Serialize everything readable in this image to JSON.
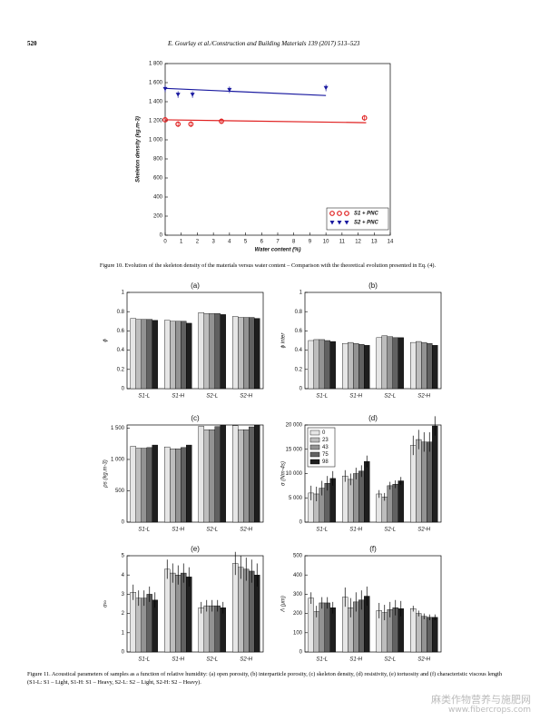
{
  "header": {
    "page": "520",
    "journal": "E. Gourlay et al./Construction and Building Materials 139 (2017) 513–523"
  },
  "captions": {
    "figure10": "Figure 10. Evolution of the skeleton density of the materials versus water content – Comparison with the theoretical evolution presented in Eq. (4).",
    "figure11": "Figure 11. Acoustical parameters of samples as a function of relative humidity: (a) open porosity, (b) interparticle porosity, (c) skeleton density, (d) resistivity, (e) tortuosity and (f) characteristic viscous length (S1-L: S1 – Light, S1-H: S1 – Heavy, S2-L: S2 – Light, S2-H: S2 – Heavy)."
  },
  "watermark": {
    "text": "麻类作物营养与施肥网",
    "url": "www.fibercrops.com"
  },
  "chart_data": [
    {
      "type": "scatter",
      "x_label": "Water content (%)",
      "y_label": "Skeleton density (kg.m-3)",
      "xlim": [
        0,
        14
      ],
      "xticks": [
        0,
        1,
        2,
        3,
        4,
        5,
        6,
        7,
        8,
        9,
        10,
        11,
        12,
        13,
        14
      ],
      "ylim": [
        0,
        1800
      ],
      "yticks": [
        0,
        200,
        400,
        600,
        800,
        {
          "value": 1000,
          "label": "1 000"
        },
        {
          "value": 1200,
          "label": "1 200"
        },
        {
          "value": 1400,
          "label": "1 400"
        },
        {
          "value": 1600,
          "label": "1 600"
        },
        {
          "value": 1800,
          "label": "1 800"
        }
      ],
      "legend": "lower right",
      "series": [
        {
          "name": "S1 + PNC",
          "color": "#e02020",
          "marker": "o",
          "x": [
            0,
            0.8,
            1.6,
            3.5,
            12.4
          ],
          "values": [
            1210,
            1165,
            1165,
            1195,
            1230
          ],
          "errors": [
            25,
            30,
            30,
            30,
            30
          ]
        },
        {
          "name": "S2 + PNC",
          "color": "#1a1aa0",
          "marker": "v",
          "x": [
            0,
            0.8,
            1.7,
            4,
            10
          ],
          "values": [
            1535,
            1475,
            1475,
            1525,
            1545
          ],
          "errors": [
            35,
            35,
            35,
            35,
            35
          ]
        }
      ],
      "lines": [
        {
          "color": "#e02020",
          "x": [
            0,
            12.5
          ],
          "values": [
            1210,
            1180
          ]
        },
        {
          "color": "#1a1aa0",
          "x": [
            0,
            10
          ],
          "values": [
            1540,
            1465
          ]
        }
      ]
    },
    {
      "type": "bar",
      "title": "(a)",
      "y_label": "ϕ",
      "categories": [
        "S1-L",
        "S1-H",
        "S2-L",
        "S2-H"
      ],
      "ylim": [
        0,
        1
      ],
      "yticks": [
        0,
        0.2,
        0.4,
        0.6,
        0.8,
        1
      ],
      "series": [
        {
          "color": "#e6e6e6",
          "values": [
            0.73,
            0.71,
            0.79,
            0.75
          ]
        },
        {
          "color": "#bdbdbd",
          "values": [
            0.72,
            0.7,
            0.78,
            0.74
          ]
        },
        {
          "color": "#939393",
          "values": [
            0.72,
            0.7,
            0.78,
            0.74
          ]
        },
        {
          "color": "#616161",
          "values": [
            0.72,
            0.7,
            0.78,
            0.74
          ]
        },
        {
          "color": "#1e1e1e",
          "values": [
            0.71,
            0.68,
            0.77,
            0.73
          ]
        }
      ]
    },
    {
      "type": "bar",
      "title": "(b)",
      "y_label": "ϕ inter",
      "categories": [
        "S1-L",
        "S1-H",
        "S2-L",
        "S2-H"
      ],
      "ylim": [
        0,
        1
      ],
      "yticks": [
        0,
        0.2,
        0.4,
        0.6,
        0.8,
        1
      ],
      "series": [
        {
          "color": "#e6e6e6",
          "values": [
            0.5,
            0.47,
            0.53,
            0.48
          ]
        },
        {
          "color": "#bdbdbd",
          "values": [
            0.51,
            0.48,
            0.55,
            0.49
          ]
        },
        {
          "color": "#939393",
          "values": [
            0.51,
            0.47,
            0.54,
            0.48
          ]
        },
        {
          "color": "#616161",
          "values": [
            0.5,
            0.46,
            0.53,
            0.47
          ]
        },
        {
          "color": "#1e1e1e",
          "values": [
            0.49,
            0.45,
            0.53,
            0.45
          ]
        }
      ]
    },
    {
      "type": "bar",
      "title": "(c)",
      "y_label": "ρs (kg.m-3)",
      "categories": [
        "S1-L",
        "S1-H",
        "S2-L",
        "S2-H"
      ],
      "ylim": [
        0,
        1550
      ],
      "yticks": [
        0,
        500,
        {
          "value": 1000,
          "label": "1 000"
        },
        {
          "value": 1500,
          "label": "1 500"
        }
      ],
      "series": [
        {
          "color": "#e6e6e6",
          "values": [
            1210,
            1200,
            1530,
            1540
          ]
        },
        {
          "color": "#bdbdbd",
          "values": [
            1180,
            1170,
            1475,
            1475
          ]
        },
        {
          "color": "#939393",
          "values": [
            1180,
            1170,
            1475,
            1475
          ]
        },
        {
          "color": "#616161",
          "values": [
            1190,
            1190,
            1525,
            1520
          ]
        },
        {
          "color": "#1e1e1e",
          "values": [
            1230,
            1230,
            1545,
            1545
          ]
        }
      ]
    },
    {
      "type": "bar",
      "title": "(d)",
      "y_label": "σ (Nm-4s)",
      "categories": [
        "S1-L",
        "S1-H",
        "S2-L",
        "S2-H"
      ],
      "ylim": [
        0,
        20000
      ],
      "yticks": [
        0,
        {
          "value": 5000,
          "label": "5 000"
        },
        {
          "value": 10000,
          "label": "10 000"
        },
        {
          "value": 15000,
          "label": "15 000"
        },
        {
          "value": 20000,
          "label": "20 000"
        }
      ],
      "legend": "upper left",
      "series": [
        {
          "name": "0",
          "color": "#e6e6e6",
          "values": [
            6000,
            9500,
            5800,
            15800
          ],
          "errors": [
            1500,
            1200,
            800,
            2000
          ]
        },
        {
          "name": "23",
          "color": "#bdbdbd",
          "values": [
            5800,
            8800,
            5200,
            17000
          ],
          "errors": [
            1500,
            1200,
            800,
            2000
          ]
        },
        {
          "name": "43",
          "color": "#939393",
          "values": [
            7000,
            10000,
            7500,
            16500
          ],
          "errors": [
            1500,
            1200,
            800,
            2000
          ]
        },
        {
          "name": "75",
          "color": "#616161",
          "values": [
            8000,
            10500,
            7800,
            16500
          ],
          "errors": [
            1500,
            1200,
            800,
            2000
          ]
        },
        {
          "name": "98",
          "color": "#1e1e1e",
          "values": [
            9000,
            12500,
            8500,
            19800
          ],
          "errors": [
            1500,
            1200,
            800,
            2000
          ]
        }
      ]
    },
    {
      "type": "bar",
      "title": "(e)",
      "y_label": "α∞",
      "categories": [
        "S1-L",
        "S1-H",
        "S2-L",
        "S2-H"
      ],
      "ylim": [
        0,
        5
      ],
      "yticks": [
        0,
        1,
        2,
        3,
        4,
        5
      ],
      "series": [
        {
          "color": "#e6e6e6",
          "values": [
            3.1,
            4.3,
            2.3,
            4.6
          ],
          "errors": [
            0.4,
            0.5,
            0.3,
            0.6
          ]
        },
        {
          "color": "#bdbdbd",
          "values": [
            2.8,
            4.1,
            2.4,
            4.4
          ],
          "errors": [
            0.4,
            0.5,
            0.3,
            0.6
          ]
        },
        {
          "color": "#939393",
          "values": [
            2.8,
            4.0,
            2.4,
            4.3
          ],
          "errors": [
            0.4,
            0.5,
            0.3,
            0.6
          ]
        },
        {
          "color": "#616161",
          "values": [
            3.0,
            4.1,
            2.4,
            4.2
          ],
          "errors": [
            0.4,
            0.5,
            0.3,
            0.6
          ]
        },
        {
          "color": "#1e1e1e",
          "values": [
            2.7,
            3.9,
            2.3,
            4.0
          ],
          "errors": [
            0.4,
            0.5,
            0.3,
            0.6
          ]
        }
      ]
    },
    {
      "type": "bar",
      "title": "(f)",
      "y_label": "Λ (μm)",
      "categories": [
        "S1-L",
        "S1-H",
        "S2-L",
        "S2-H"
      ],
      "ylim": [
        0,
        500
      ],
      "yticks": [
        0,
        100,
        200,
        300,
        400,
        500
      ],
      "series": [
        {
          "color": "#e6e6e6",
          "values": [
            280,
            285,
            215,
            225
          ],
          "errors": [
            30,
            50,
            40,
            15
          ]
        },
        {
          "color": "#bdbdbd",
          "values": [
            210,
            230,
            205,
            200
          ],
          "errors": [
            30,
            50,
            40,
            15
          ]
        },
        {
          "color": "#939393",
          "values": [
            255,
            260,
            220,
            185
          ],
          "errors": [
            30,
            50,
            40,
            15
          ]
        },
        {
          "color": "#616161",
          "values": [
            255,
            270,
            230,
            180
          ],
          "errors": [
            30,
            50,
            40,
            15
          ]
        },
        {
          "color": "#1e1e1e",
          "values": [
            230,
            290,
            225,
            180
          ],
          "errors": [
            30,
            50,
            40,
            15
          ]
        }
      ]
    }
  ]
}
